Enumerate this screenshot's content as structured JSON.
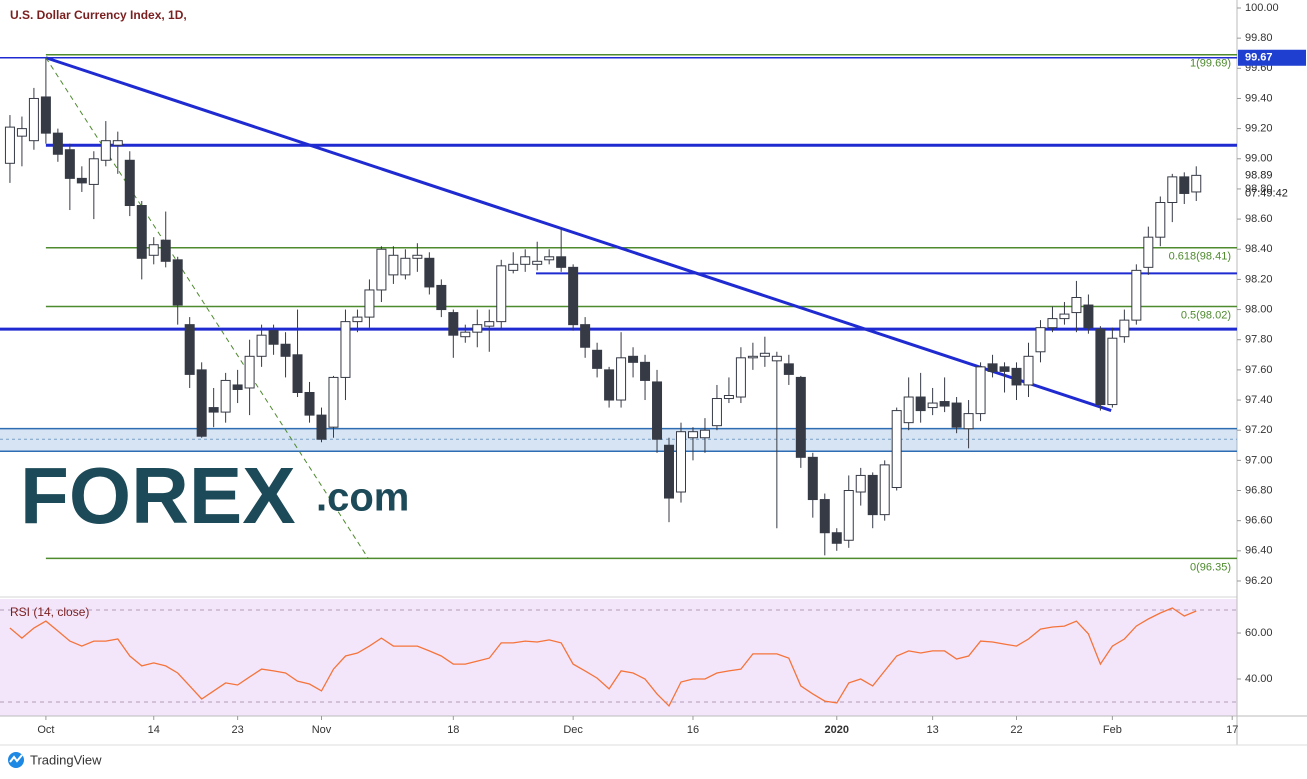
{
  "chart_data": {
    "type": "candlestick",
    "title": "U.S. Dollar Currency Index, 1D,",
    "open": [
      98.97,
      99.15,
      99.12,
      99.41,
      99.17,
      99.06,
      98.87,
      98.83,
      98.99,
      99.09,
      98.99,
      98.69,
      98.36,
      98.46,
      98.33,
      97.9,
      97.6,
      97.35,
      97.32,
      97.5,
      97.48,
      97.69,
      97.86,
      97.77,
      97.7,
      97.45,
      97.3,
      97.22,
      97.55,
      97.92,
      97.95,
      98.13,
      98.23,
      98.23,
      98.34,
      98.34,
      98.16,
      97.98,
      97.82,
      97.85,
      97.89,
      97.92,
      98.26,
      98.3,
      98.3,
      98.33,
      98.35,
      98.28,
      97.9,
      97.73,
      97.6,
      97.4,
      97.69,
      97.65,
      97.52,
      97.1,
      96.79,
      97.15,
      97.15,
      97.23,
      97.41,
      97.42,
      97.68,
      97.69,
      97.66,
      97.64,
      97.55,
      97.02,
      96.74,
      96.52,
      96.47,
      96.79,
      96.9,
      96.64,
      96.82,
      97.25,
      97.42,
      97.35,
      97.39,
      97.38,
      97.21,
      97.31,
      97.64,
      97.62,
      97.61,
      97.5,
      97.72,
      97.88,
      97.94,
      97.98,
      98.03,
      97.87,
      97.37,
      97.82,
      97.93,
      98.28,
      98.48,
      98.71,
      98.88,
      98.78
    ],
    "high": [
      99.29,
      99.28,
      99.47,
      99.67,
      99.2,
      99.1,
      98.95,
      99.05,
      99.25,
      99.18,
      99.05,
      98.72,
      98.48,
      98.65,
      98.35,
      97.95,
      97.65,
      97.48,
      97.58,
      97.6,
      97.8,
      97.9,
      97.9,
      97.85,
      98.0,
      97.52,
      97.35,
      97.56,
      98.0,
      98.0,
      98.2,
      98.42,
      98.42,
      98.4,
      98.44,
      98.38,
      98.2,
      98.0,
      97.9,
      98.0,
      98.0,
      98.33,
      98.38,
      98.4,
      98.45,
      98.4,
      98.54,
      98.3,
      97.95,
      97.78,
      97.62,
      97.85,
      97.75,
      97.7,
      97.6,
      97.15,
      97.25,
      97.22,
      97.28,
      97.5,
      97.55,
      97.75,
      97.78,
      97.82,
      97.72,
      97.7,
      97.56,
      97.05,
      96.78,
      96.55,
      96.9,
      96.95,
      96.92,
      97.0,
      97.35,
      97.55,
      97.58,
      97.48,
      97.55,
      97.42,
      97.4,
      97.65,
      97.7,
      97.65,
      97.65,
      97.78,
      97.93,
      98.02,
      98.05,
      98.19,
      98.1,
      97.89,
      97.88,
      98.0,
      98.3,
      98.55,
      98.75,
      98.9,
      98.91,
      98.95
    ],
    "low": [
      98.84,
      98.95,
      99.06,
      99.1,
      98.98,
      98.66,
      98.78,
      98.6,
      98.95,
      98.9,
      98.62,
      98.2,
      98.3,
      98.28,
      97.9,
      97.48,
      97.15,
      97.22,
      97.25,
      97.38,
      97.3,
      97.62,
      97.7,
      97.55,
      97.42,
      97.25,
      97.12,
      97.15,
      97.4,
      97.85,
      97.88,
      98.05,
      98.17,
      98.2,
      98.25,
      98.1,
      97.95,
      97.68,
      97.78,
      97.75,
      97.72,
      97.87,
      98.24,
      98.25,
      98.26,
      98.3,
      98.25,
      97.86,
      97.68,
      97.55,
      97.35,
      97.35,
      97.55,
      97.4,
      97.05,
      96.59,
      96.72,
      97.0,
      97.05,
      97.2,
      97.38,
      97.38,
      97.6,
      97.62,
      96.55,
      97.5,
      96.95,
      96.62,
      96.37,
      96.4,
      96.42,
      96.7,
      96.55,
      96.6,
      96.8,
      97.2,
      97.25,
      97.3,
      97.32,
      97.18,
      97.08,
      97.26,
      97.55,
      97.45,
      97.4,
      97.42,
      97.65,
      97.85,
      97.9,
      97.85,
      97.84,
      97.33,
      97.35,
      97.78,
      97.9,
      98.23,
      98.42,
      98.58,
      98.7,
      98.72
    ],
    "close": [
      99.21,
      99.2,
      99.4,
      99.17,
      99.03,
      98.87,
      98.84,
      99.0,
      99.12,
      99.12,
      98.69,
      98.34,
      98.43,
      98.32,
      98.03,
      97.57,
      97.16,
      97.32,
      97.53,
      97.47,
      97.69,
      97.83,
      97.77,
      97.69,
      97.45,
      97.3,
      97.14,
      97.55,
      97.92,
      97.95,
      98.13,
      98.4,
      98.36,
      98.34,
      98.36,
      98.15,
      98.0,
      97.83,
      97.85,
      97.9,
      97.92,
      98.29,
      98.3,
      98.35,
      98.32,
      98.35,
      98.28,
      97.9,
      97.75,
      97.61,
      97.4,
      97.68,
      97.65,
      97.53,
      97.14,
      96.75,
      97.19,
      97.19,
      97.2,
      97.41,
      97.43,
      97.68,
      97.69,
      97.71,
      97.69,
      97.57,
      97.02,
      96.74,
      96.52,
      96.45,
      96.8,
      96.9,
      96.64,
      96.97,
      97.33,
      97.42,
      97.33,
      97.38,
      97.36,
      97.22,
      97.31,
      97.62,
      97.59,
      97.59,
      97.5,
      97.69,
      97.88,
      97.94,
      97.97,
      98.08,
      97.88,
      97.37,
      97.81,
      97.93,
      98.26,
      98.48,
      98.71,
      98.88,
      98.77,
      98.89
    ],
    "up_color": "#ffffff",
    "down_color": "#363a45",
    "xlim": [
      -0.83,
      102.4
    ],
    "xticks": [
      {
        "value": 3,
        "label": "Oct"
      },
      {
        "value": 12,
        "label": "14"
      },
      {
        "value": 19,
        "label": "23"
      },
      {
        "value": 26,
        "label": "Nov"
      },
      {
        "value": 37,
        "label": "18"
      },
      {
        "value": 47,
        "label": "Dec"
      },
      {
        "value": 57,
        "label": "16"
      },
      {
        "value": 69,
        "label": "2020"
      },
      {
        "value": 77,
        "label": "13"
      },
      {
        "value": 84,
        "label": "22"
      },
      {
        "value": 92,
        "label": "Feb"
      },
      {
        "value": 102,
        "label": "17"
      }
    ],
    "ylim": [
      96.107,
      100.053
    ],
    "yticks": [
      {
        "value": 96.2,
        "label": "96.20"
      },
      {
        "value": 96.4,
        "label": "96.40"
      },
      {
        "value": 96.6,
        "label": "96.60"
      },
      {
        "value": 96.8,
        "label": "96.80"
      },
      {
        "value": 97,
        "label": "97.00"
      },
      {
        "value": 97.2,
        "label": "97.20"
      },
      {
        "value": 97.4,
        "label": "97.40"
      },
      {
        "value": 97.6,
        "label": "97.60"
      },
      {
        "value": 97.8,
        "label": "97.80"
      },
      {
        "value": 98,
        "label": "98.00"
      },
      {
        "value": 98.2,
        "label": "98.20"
      },
      {
        "value": 98.4,
        "label": "98.40"
      },
      {
        "value": 98.6,
        "label": "98.60"
      },
      {
        "value": 98.8,
        "label": "98.80"
      },
      {
        "value": 99,
        "label": "99.00"
      },
      {
        "value": 99.2,
        "label": "99.20"
      },
      {
        "value": 99.4,
        "label": "99.40"
      },
      {
        "value": 99.6,
        "label": "99.60"
      },
      {
        "value": 99.8,
        "label": "99.80"
      },
      {
        "value": 100,
        "label": "100.00"
      }
    ],
    "grid": false,
    "last_price": 98.89,
    "countdown": "07:49:42",
    "marked_price": 99.67,
    "levels": [
      {
        "value": 99.67,
        "weight": "thin"
      },
      {
        "value": 99.09,
        "start": 3,
        "weight": "thick"
      },
      {
        "value": 98.24,
        "start": 43.9,
        "weight": "medium"
      },
      {
        "value": 97.87,
        "weight": "thick"
      }
    ],
    "level_color": "#1f2bd1",
    "fib": {
      "start": 3,
      "color": "#4e8a2e",
      "levels": [
        {
          "label": "1(99.69)",
          "value": 99.69
        },
        {
          "label": "0.618(98.41)",
          "value": 98.41
        },
        {
          "label": "0.5(98.02)",
          "value": 98.02
        },
        {
          "label": "0(96.35)",
          "value": 96.35
        }
      ]
    },
    "zone": {
      "low": 97.06,
      "high": 97.21,
      "mid": 97.14
    },
    "trendlines": [
      {
        "points": [
          [
            3,
            99.67
          ],
          [
            91.9,
            97.33
          ]
        ],
        "color": "#1f2bd1",
        "dashed": false
      },
      {
        "points": [
          [
            3,
            99.67
          ],
          [
            29.9,
            96.35
          ]
        ],
        "color": "#4e8a2e",
        "dashed": true
      }
    ],
    "rsi": {
      "label": "RSI (14, close)",
      "color": "#f4743b",
      "ylim": [
        23.9,
        74.8
      ],
      "yticks": [
        {
          "value": 60,
          "label": "60.00"
        },
        {
          "value": 40,
          "label": "40.00"
        }
      ],
      "bands": [
        70,
        30
      ],
      "values": [
        62.2,
        57.8,
        62.2,
        65.2,
        60.9,
        56.5,
        54.3,
        56.5,
        56.5,
        57.4,
        50.0,
        45.7,
        47.0,
        45.7,
        42.6,
        37.0,
        31.3,
        34.8,
        38.3,
        37.4,
        40.9,
        44.3,
        43.5,
        42.6,
        39.1,
        37.8,
        34.8,
        44.3,
        50.0,
        51.3,
        54.3,
        57.8,
        54.3,
        54.3,
        54.3,
        52.2,
        50.0,
        46.5,
        46.5,
        47.8,
        49.1,
        55.7,
        55.7,
        56.5,
        56.1,
        57.0,
        55.7,
        46.5,
        43.5,
        40.4,
        35.7,
        43.5,
        42.6,
        40.0,
        33.5,
        28.3,
        38.7,
        40.0,
        40.0,
        42.6,
        43.5,
        44.3,
        50.9,
        50.9,
        50.9,
        49.1,
        37.0,
        33.5,
        30.4,
        29.6,
        38.3,
        40.0,
        37.0,
        43.5,
        50.0,
        52.2,
        51.3,
        52.2,
        52.2,
        48.7,
        50.0,
        56.5,
        56.1,
        55.2,
        54.3,
        57.4,
        61.7,
        62.6,
        63.0,
        65.2,
        59.6,
        46.5,
        54.3,
        57.4,
        63.0,
        66.1,
        68.7,
        70.9,
        67.4,
        69.6
      ]
    },
    "logo": {
      "main": "FOREX",
      "suffix": ".com"
    },
    "footer": "TradingView"
  }
}
